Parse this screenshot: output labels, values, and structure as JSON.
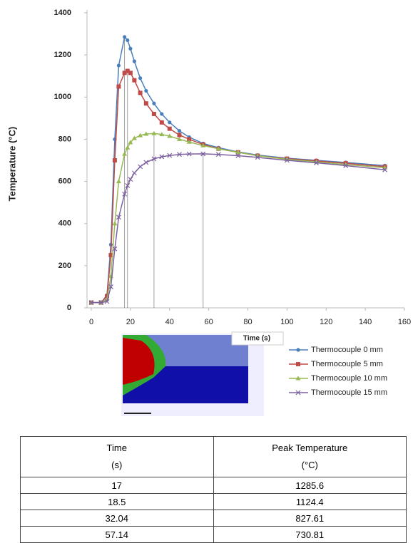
{
  "chart_data": {
    "type": "line",
    "y_label": "Temperature (°C)",
    "x_label": "Time (s)",
    "x": [
      0,
      5,
      8,
      10,
      12,
      14,
      17,
      18.5,
      20,
      22,
      25,
      28,
      32.04,
      36,
      40,
      45,
      50,
      57.14,
      65,
      75,
      85,
      100,
      115,
      130,
      150
    ],
    "series": [
      {
        "name": "Thermocouple 0 mm",
        "color": "#4a7ebb",
        "marker": "circle",
        "values": [
          25,
          25,
          60,
          300,
          800,
          1150,
          1285.6,
          1270,
          1230,
          1170,
          1090,
          1030,
          970,
          920,
          880,
          840,
          810,
          780,
          760,
          740,
          725,
          710,
          700,
          690,
          675
        ]
      },
      {
        "name": "Thermocouple 5 mm",
        "color": "#be4b48",
        "marker": "square",
        "values": [
          25,
          25,
          55,
          250,
          700,
          1050,
          1115,
          1124.4,
          1115,
          1080,
          1020,
          970,
          920,
          880,
          850,
          820,
          800,
          775,
          755,
          738,
          722,
          708,
          697,
          686,
          670
        ]
      },
      {
        "name": "Thermocouple 10 mm",
        "color": "#98b954",
        "marker": "triangle",
        "values": [
          25,
          25,
          40,
          150,
          400,
          600,
          730,
          760,
          785,
          805,
          818,
          825,
          827.61,
          823,
          815,
          800,
          787,
          770,
          755,
          738,
          722,
          705,
          693,
          680,
          665
        ]
      },
      {
        "name": "Thermocouple 15 mm",
        "color": "#7d60a0",
        "marker": "cross",
        "values": [
          25,
          25,
          30,
          100,
          280,
          430,
          540,
          580,
          610,
          640,
          670,
          690,
          707,
          717,
          723,
          728,
          730,
          730.81,
          728,
          722,
          714,
          700,
          688,
          675,
          655
        ]
      }
    ],
    "xlim": [
      0,
      160
    ],
    "xticks": [
      0,
      20,
      40,
      60,
      80,
      100,
      120,
      140,
      160
    ],
    "ylim": [
      0,
      1400
    ],
    "yticks": [
      0,
      200,
      400,
      600,
      800,
      1000,
      1200,
      1400
    ],
    "grid": false,
    "legend": "lower right"
  },
  "table": {
    "header": [
      [
        "Time",
        "(s)"
      ],
      [
        "Peak Temperature",
        "(°C)"
      ]
    ],
    "rows": [
      [
        "17",
        "1285.6"
      ],
      [
        "18.5",
        "1124.4"
      ],
      [
        "32.04",
        "827.61"
      ],
      [
        "57.14",
        "730.81"
      ]
    ]
  }
}
